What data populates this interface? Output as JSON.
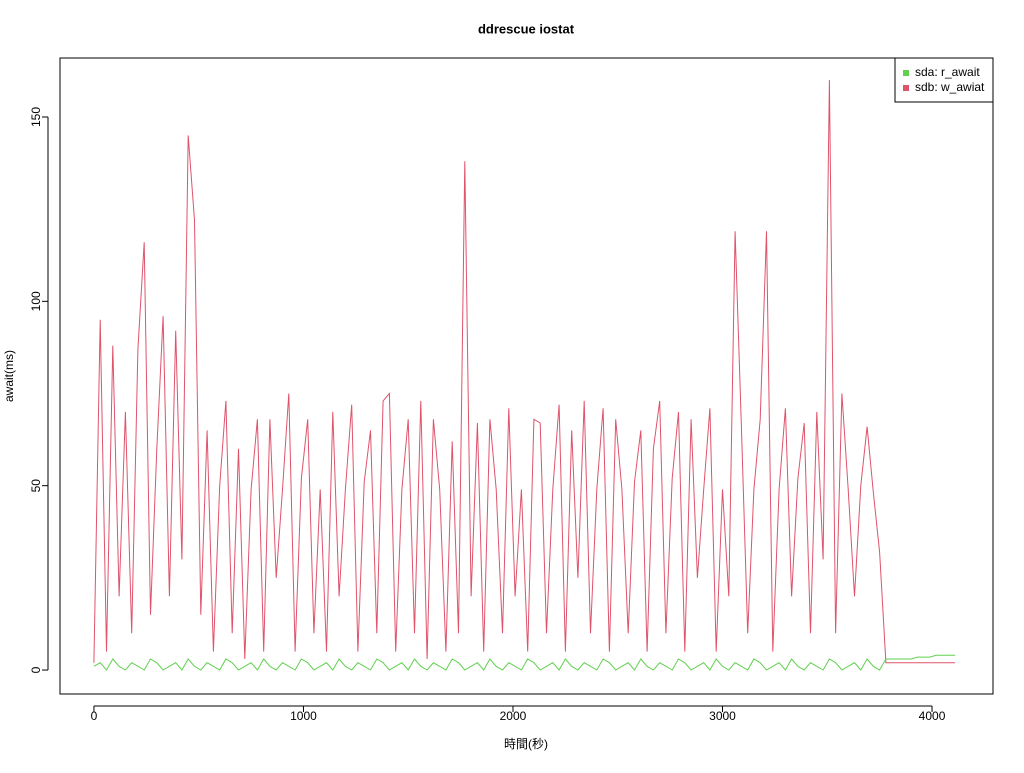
{
  "chart_data": {
    "type": "line",
    "title": "ddrescue iostat",
    "xlabel": "時間(秒)",
    "ylabel": "await(ms)",
    "xlim": [
      -162,
      4291
    ],
    "ylim": [
      -6.5,
      166
    ],
    "xticks": [
      0,
      1000,
      2000,
      3000,
      4000
    ],
    "yticks": [
      0,
      50,
      100,
      150
    ],
    "legend": "topright",
    "x": [
      0,
      30,
      60,
      90,
      120,
      150,
      180,
      210,
      240,
      270,
      300,
      330,
      360,
      390,
      420,
      450,
      480,
      510,
      540,
      570,
      600,
      630,
      660,
      690,
      720,
      750,
      780,
      810,
      840,
      870,
      900,
      930,
      960,
      990,
      1020,
      1050,
      1080,
      1110,
      1140,
      1170,
      1200,
      1230,
      1260,
      1290,
      1320,
      1350,
      1380,
      1410,
      1440,
      1470,
      1500,
      1530,
      1560,
      1590,
      1620,
      1650,
      1680,
      1710,
      1740,
      1770,
      1800,
      1830,
      1860,
      1890,
      1920,
      1950,
      1980,
      2010,
      2040,
      2070,
      2100,
      2130,
      2160,
      2190,
      2220,
      2250,
      2280,
      2310,
      2340,
      2370,
      2400,
      2430,
      2460,
      2490,
      2520,
      2550,
      2580,
      2610,
      2640,
      2670,
      2700,
      2730,
      2760,
      2790,
      2820,
      2850,
      2880,
      2910,
      2940,
      2970,
      3000,
      3030,
      3060,
      3090,
      3120,
      3150,
      3180,
      3210,
      3240,
      3270,
      3300,
      3330,
      3360,
      3390,
      3420,
      3450,
      3480,
      3510,
      3540,
      3570,
      3600,
      3630,
      3660,
      3690,
      3720,
      3750,
      3780,
      3810,
      3840,
      3870,
      3900,
      3930,
      3960,
      3990,
      4020,
      4050,
      4080,
      4110
    ],
    "series": [
      {
        "name": "sda: r_await",
        "color": "#61D04F",
        "values": [
          1,
          2,
          0,
          3,
          1,
          0,
          2,
          1,
          0,
          3,
          2,
          0,
          1,
          2,
          0,
          3,
          1,
          0,
          2,
          1,
          0,
          3,
          2,
          0,
          1,
          2,
          0,
          3,
          1,
          0,
          2,
          1,
          0,
          3,
          2,
          0,
          1,
          2,
          0,
          3,
          1,
          0,
          2,
          1,
          0,
          3,
          2,
          0,
          1,
          2,
          0,
          3,
          1,
          0,
          2,
          1,
          0,
          3,
          2,
          0,
          1,
          2,
          0,
          3,
          1,
          0,
          2,
          1,
          0,
          3,
          2,
          0,
          1,
          2,
          0,
          3,
          1,
          0,
          2,
          1,
          0,
          3,
          2,
          0,
          1,
          2,
          0,
          3,
          1,
          0,
          2,
          1,
          0,
          3,
          2,
          0,
          1,
          2,
          0,
          3,
          1,
          0,
          2,
          1,
          0,
          3,
          2,
          0,
          1,
          2,
          0,
          3,
          1,
          0,
          2,
          1,
          0,
          3,
          2,
          0,
          1,
          2,
          0,
          3,
          1,
          0,
          3,
          3,
          3,
          3,
          3,
          3.5,
          3.5,
          3.5,
          4,
          4,
          4,
          4
        ]
      },
      {
        "name": "sdb: w_awiat",
        "color": "#DF536B",
        "values": [
          2,
          95,
          5,
          88,
          20,
          70,
          10,
          87,
          116,
          15,
          60,
          96,
          20,
          92,
          30,
          145,
          122,
          15,
          65,
          5,
          50,
          73,
          10,
          60,
          3,
          49,
          68,
          5,
          68,
          25,
          49,
          75,
          5,
          52,
          68,
          10,
          49,
          5,
          70,
          20,
          49,
          72,
          5,
          51,
          65,
          10,
          73,
          75,
          5,
          49,
          68,
          10,
          73,
          3,
          68,
          49,
          5,
          62,
          10,
          138,
          20,
          67,
          5,
          68,
          49,
          10,
          71,
          20,
          49,
          5,
          68,
          67,
          10,
          49,
          72,
          5,
          65,
          25,
          73,
          10,
          49,
          71,
          5,
          68,
          49,
          10,
          51,
          65,
          5,
          60,
          73,
          10,
          52,
          70,
          5,
          68,
          25,
          49,
          71,
          5,
          49,
          20,
          119,
          66,
          10,
          49,
          68,
          119,
          5,
          49,
          71,
          20,
          52,
          67,
          10,
          70,
          30,
          160,
          10,
          75,
          49,
          20,
          50,
          66,
          48,
          32,
          2,
          2,
          2,
          2,
          2,
          2,
          2,
          2,
          2,
          2,
          2,
          2
        ]
      }
    ]
  }
}
